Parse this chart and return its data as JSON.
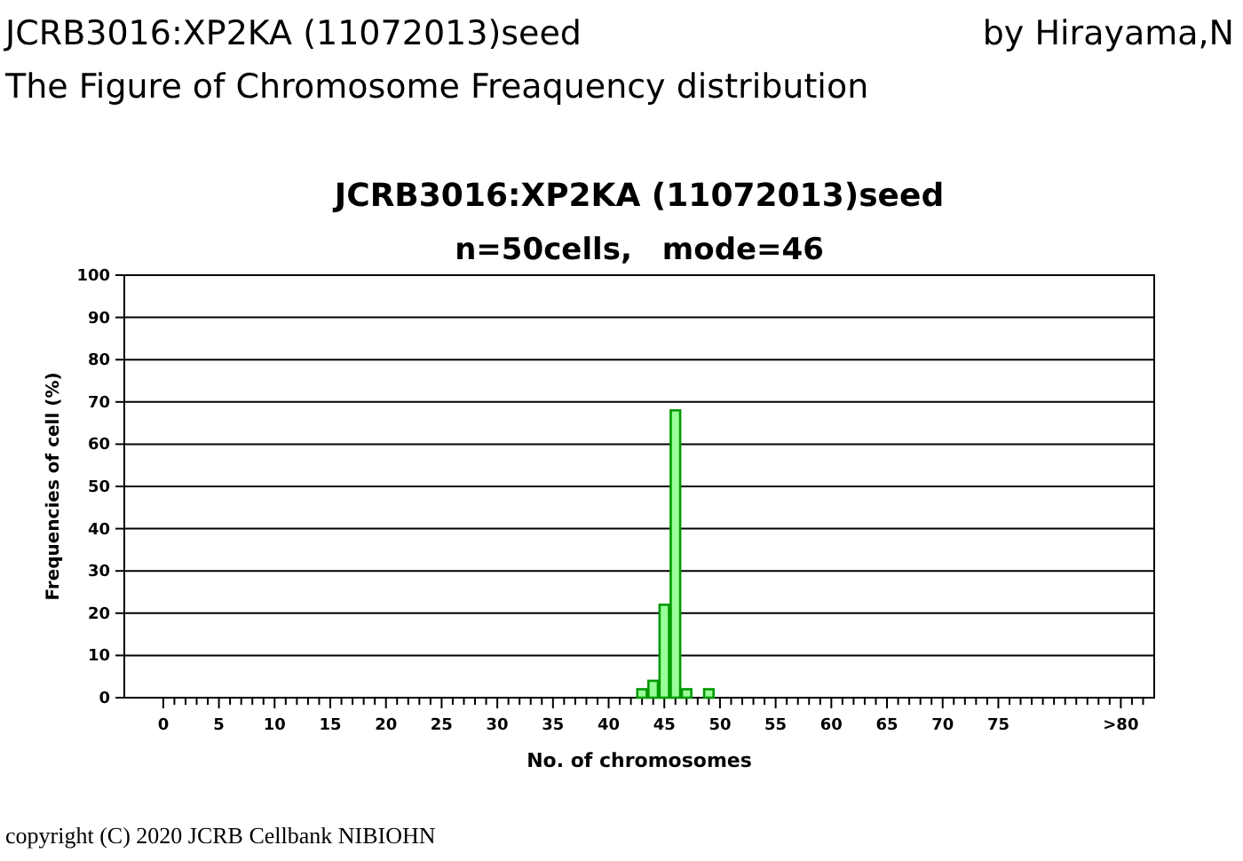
{
  "chart_data": {
    "type": "bar",
    "title": "JCRB3016:XP2KA (11072013)seed",
    "subtitle": "n=50cells,　mode=46",
    "xlabel": "No. of chromosomes",
    "ylabel": "Frequencies of cell (%)",
    "annotations": [
      "JCRB3016:XP2KA (11072013)seed",
      "by Hirayama,N",
      "The Figure of Chromosome Freaquency distribution",
      "copyright (C) 2020 JCRB Cellbank NIBIOHN"
    ],
    "x": [
      1,
      2,
      3,
      4,
      5,
      6,
      7,
      8,
      9,
      10,
      11,
      12,
      13,
      14,
      15,
      16,
      17,
      18,
      19,
      20,
      21,
      22,
      23,
      24,
      25,
      26,
      27,
      28,
      29,
      30,
      31,
      32,
      33,
      34,
      35,
      36,
      37,
      38,
      39,
      40,
      41,
      42,
      43,
      44,
      45,
      46,
      47,
      48,
      49,
      50,
      51,
      52,
      53,
      54,
      55,
      56,
      57,
      58,
      59,
      60,
      61,
      62,
      63,
      64,
      65,
      66,
      67,
      68,
      69,
      70,
      71,
      72,
      73,
      74,
      75,
      76,
      77,
      78,
      79,
      80,
      81,
      82,
      83,
      84,
      85,
      86
    ],
    "values": [
      0,
      0,
      0,
      0,
      0,
      0,
      0,
      0,
      0,
      0,
      0,
      0,
      0,
      0,
      0,
      0,
      0,
      0,
      0,
      0,
      0,
      0,
      0,
      0,
      0,
      0,
      0,
      0,
      0,
      0,
      0,
      0,
      0,
      0,
      0,
      0,
      0,
      0,
      0,
      0,
      0,
      0,
      2,
      4,
      22,
      68,
      2,
      0,
      2,
      0,
      0,
      0,
      0,
      0,
      0,
      0,
      0,
      0,
      0,
      0,
      0,
      0,
      0,
      0,
      0,
      0,
      0,
      0,
      0,
      0,
      0,
      0,
      0,
      0,
      0,
      0,
      0,
      0,
      0,
      0,
      0,
      0,
      0,
      0,
      0,
      0
    ],
    "color": "#99ff99",
    "xlim": [
      -3.5,
      89
    ],
    "xticks": [
      0,
      5,
      10,
      15,
      20,
      25,
      30,
      35,
      40,
      45,
      50,
      55,
      60,
      65,
      70,
      75,
      {
        "value": 86,
        "label": ">80"
      },
      {
        "value": 1,
        "label": null
      },
      {
        "value": 2,
        "label": null
      },
      {
        "value": 3,
        "label": null
      },
      {
        "value": 4,
        "label": null
      },
      {
        "value": 6,
        "label": null
      },
      {
        "value": 7,
        "label": null
      },
      {
        "value": 8,
        "label": null
      },
      {
        "value": 9,
        "label": null
      },
      {
        "value": 11,
        "label": null
      },
      {
        "value": 12,
        "label": null
      },
      {
        "value": 13,
        "label": null
      },
      {
        "value": 14,
        "label": null
      },
      {
        "value": 16,
        "label": null
      },
      {
        "value": 17,
        "label": null
      },
      {
        "value": 18,
        "label": null
      },
      {
        "value": 19,
        "label": null
      },
      {
        "value": 21,
        "label": null
      },
      {
        "value": 22,
        "label": null
      },
      {
        "value": 23,
        "label": null
      },
      {
        "value": 24,
        "label": null
      },
      {
        "value": 26,
        "label": null
      },
      {
        "value": 27,
        "label": null
      },
      {
        "value": 28,
        "label": null
      },
      {
        "value": 29,
        "label": null
      },
      {
        "value": 31,
        "label": null
      },
      {
        "value": 32,
        "label": null
      },
      {
        "value": 33,
        "label": null
      },
      {
        "value": 34,
        "label": null
      },
      {
        "value": 36,
        "label": null
      },
      {
        "value": 37,
        "label": null
      },
      {
        "value": 38,
        "label": null
      },
      {
        "value": 39,
        "label": null
      },
      {
        "value": 41,
        "label": null
      },
      {
        "value": 42,
        "label": null
      },
      {
        "value": 43,
        "label": null
      },
      {
        "value": 44,
        "label": null
      },
      {
        "value": 46,
        "label": null
      },
      {
        "value": 47,
        "label": null
      },
      {
        "value": 48,
        "label": null
      },
      {
        "value": 49,
        "label": null
      },
      {
        "value": 51,
        "label": null
      },
      {
        "value": 52,
        "label": null
      },
      {
        "value": 53,
        "label": null
      },
      {
        "value": 54,
        "label": null
      },
      {
        "value": 56,
        "label": null
      },
      {
        "value": 57,
        "label": null
      },
      {
        "value": 58,
        "label": null
      },
      {
        "value": 59,
        "label": null
      },
      {
        "value": 61,
        "label": null
      },
      {
        "value": 62,
        "label": null
      },
      {
        "value": 63,
        "label": null
      },
      {
        "value": 64,
        "label": null
      },
      {
        "value": 66,
        "label": null
      },
      {
        "value": 67,
        "label": null
      },
      {
        "value": 68,
        "label": null
      },
      {
        "value": 69,
        "label": null
      },
      {
        "value": 71,
        "label": null
      },
      {
        "value": 72,
        "label": null
      },
      {
        "value": 73,
        "label": null
      },
      {
        "value": 74,
        "label": null
      },
      {
        "value": 76,
        "label": null
      },
      {
        "value": 77,
        "label": null
      },
      {
        "value": 78,
        "label": null
      },
      {
        "value": 79,
        "label": null
      },
      {
        "value": 80,
        "label": null
      },
      {
        "value": 81,
        "label": null
      },
      {
        "value": 82,
        "label": null
      },
      {
        "value": 83,
        "label": null
      },
      {
        "value": 84,
        "label": null
      },
      {
        "value": 85,
        "label": null
      },
      {
        "value": 87,
        "label": null
      },
      {
        "value": 88,
        "label": null
      }
    ],
    "ylim": [
      0,
      100
    ],
    "yticks": [
      0,
      10,
      20,
      30,
      40,
      50,
      60,
      70,
      80,
      90,
      100
    ],
    "grid": "y"
  }
}
